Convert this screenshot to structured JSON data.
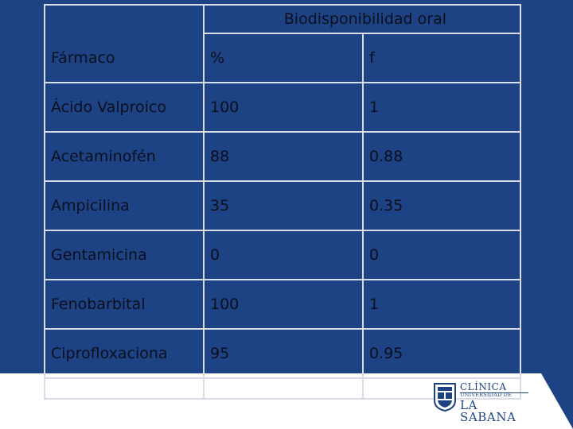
{
  "table": {
    "group_header": "Biodisponibilidad oral",
    "columns": [
      "Fármaco",
      "%",
      "f"
    ],
    "rows": [
      [
        "Ácido Valproico",
        "100",
        "1"
      ],
      [
        "Acetaminofén",
        "88",
        "0.88"
      ],
      [
        "Ampicilina",
        "35",
        "0.35"
      ],
      [
        "Gentamicina",
        "0",
        "0"
      ],
      [
        "Fenobarbital",
        "100",
        "1"
      ],
      [
        "Ciprofloxaciona",
        "95",
        "0.95"
      ]
    ]
  },
  "logo": {
    "line1": "CLÍNICA",
    "line2": "UNIVERSIDAD DE",
    "line3": "LA SABANA"
  },
  "colors": {
    "background": "#1e4384",
    "text": "#0b0f1e",
    "grid": "#d7dce6",
    "band": "#ffffff"
  }
}
